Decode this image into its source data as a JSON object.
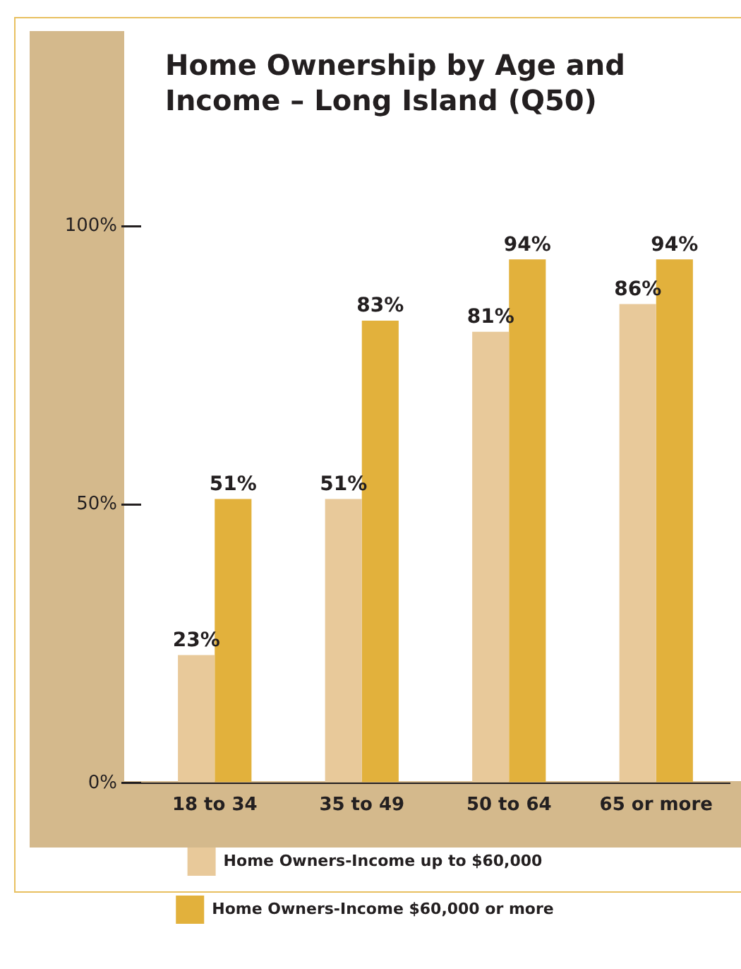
{
  "chart_data": {
    "type": "bar",
    "title": "Home Ownership by Age and Income – Long Island (Q50)",
    "categories": [
      "18 to 34",
      "35 to 49",
      "50 to 64",
      "65 or more"
    ],
    "series": [
      {
        "name": "Home Owners-Income up to $60,000",
        "color": "#e8c99a",
        "values": [
          23,
          51,
          81,
          86
        ],
        "value_labels": [
          "23%",
          "51%",
          "81%",
          "86%"
        ]
      },
      {
        "name": "Home Owners-Income $60,000 or more",
        "color": "#e2b13c",
        "values": [
          51,
          83,
          94,
          94
        ],
        "value_labels": [
          "51%",
          "83%",
          "94%",
          "94%"
        ]
      }
    ],
    "ylim": [
      0,
      100
    ],
    "yticks": [
      {
        "value": 0,
        "label": "0%"
      },
      {
        "value": 50,
        "label": "50%"
      },
      {
        "value": 100,
        "label": "100%"
      }
    ],
    "grid": false,
    "legend": "bottom"
  }
}
